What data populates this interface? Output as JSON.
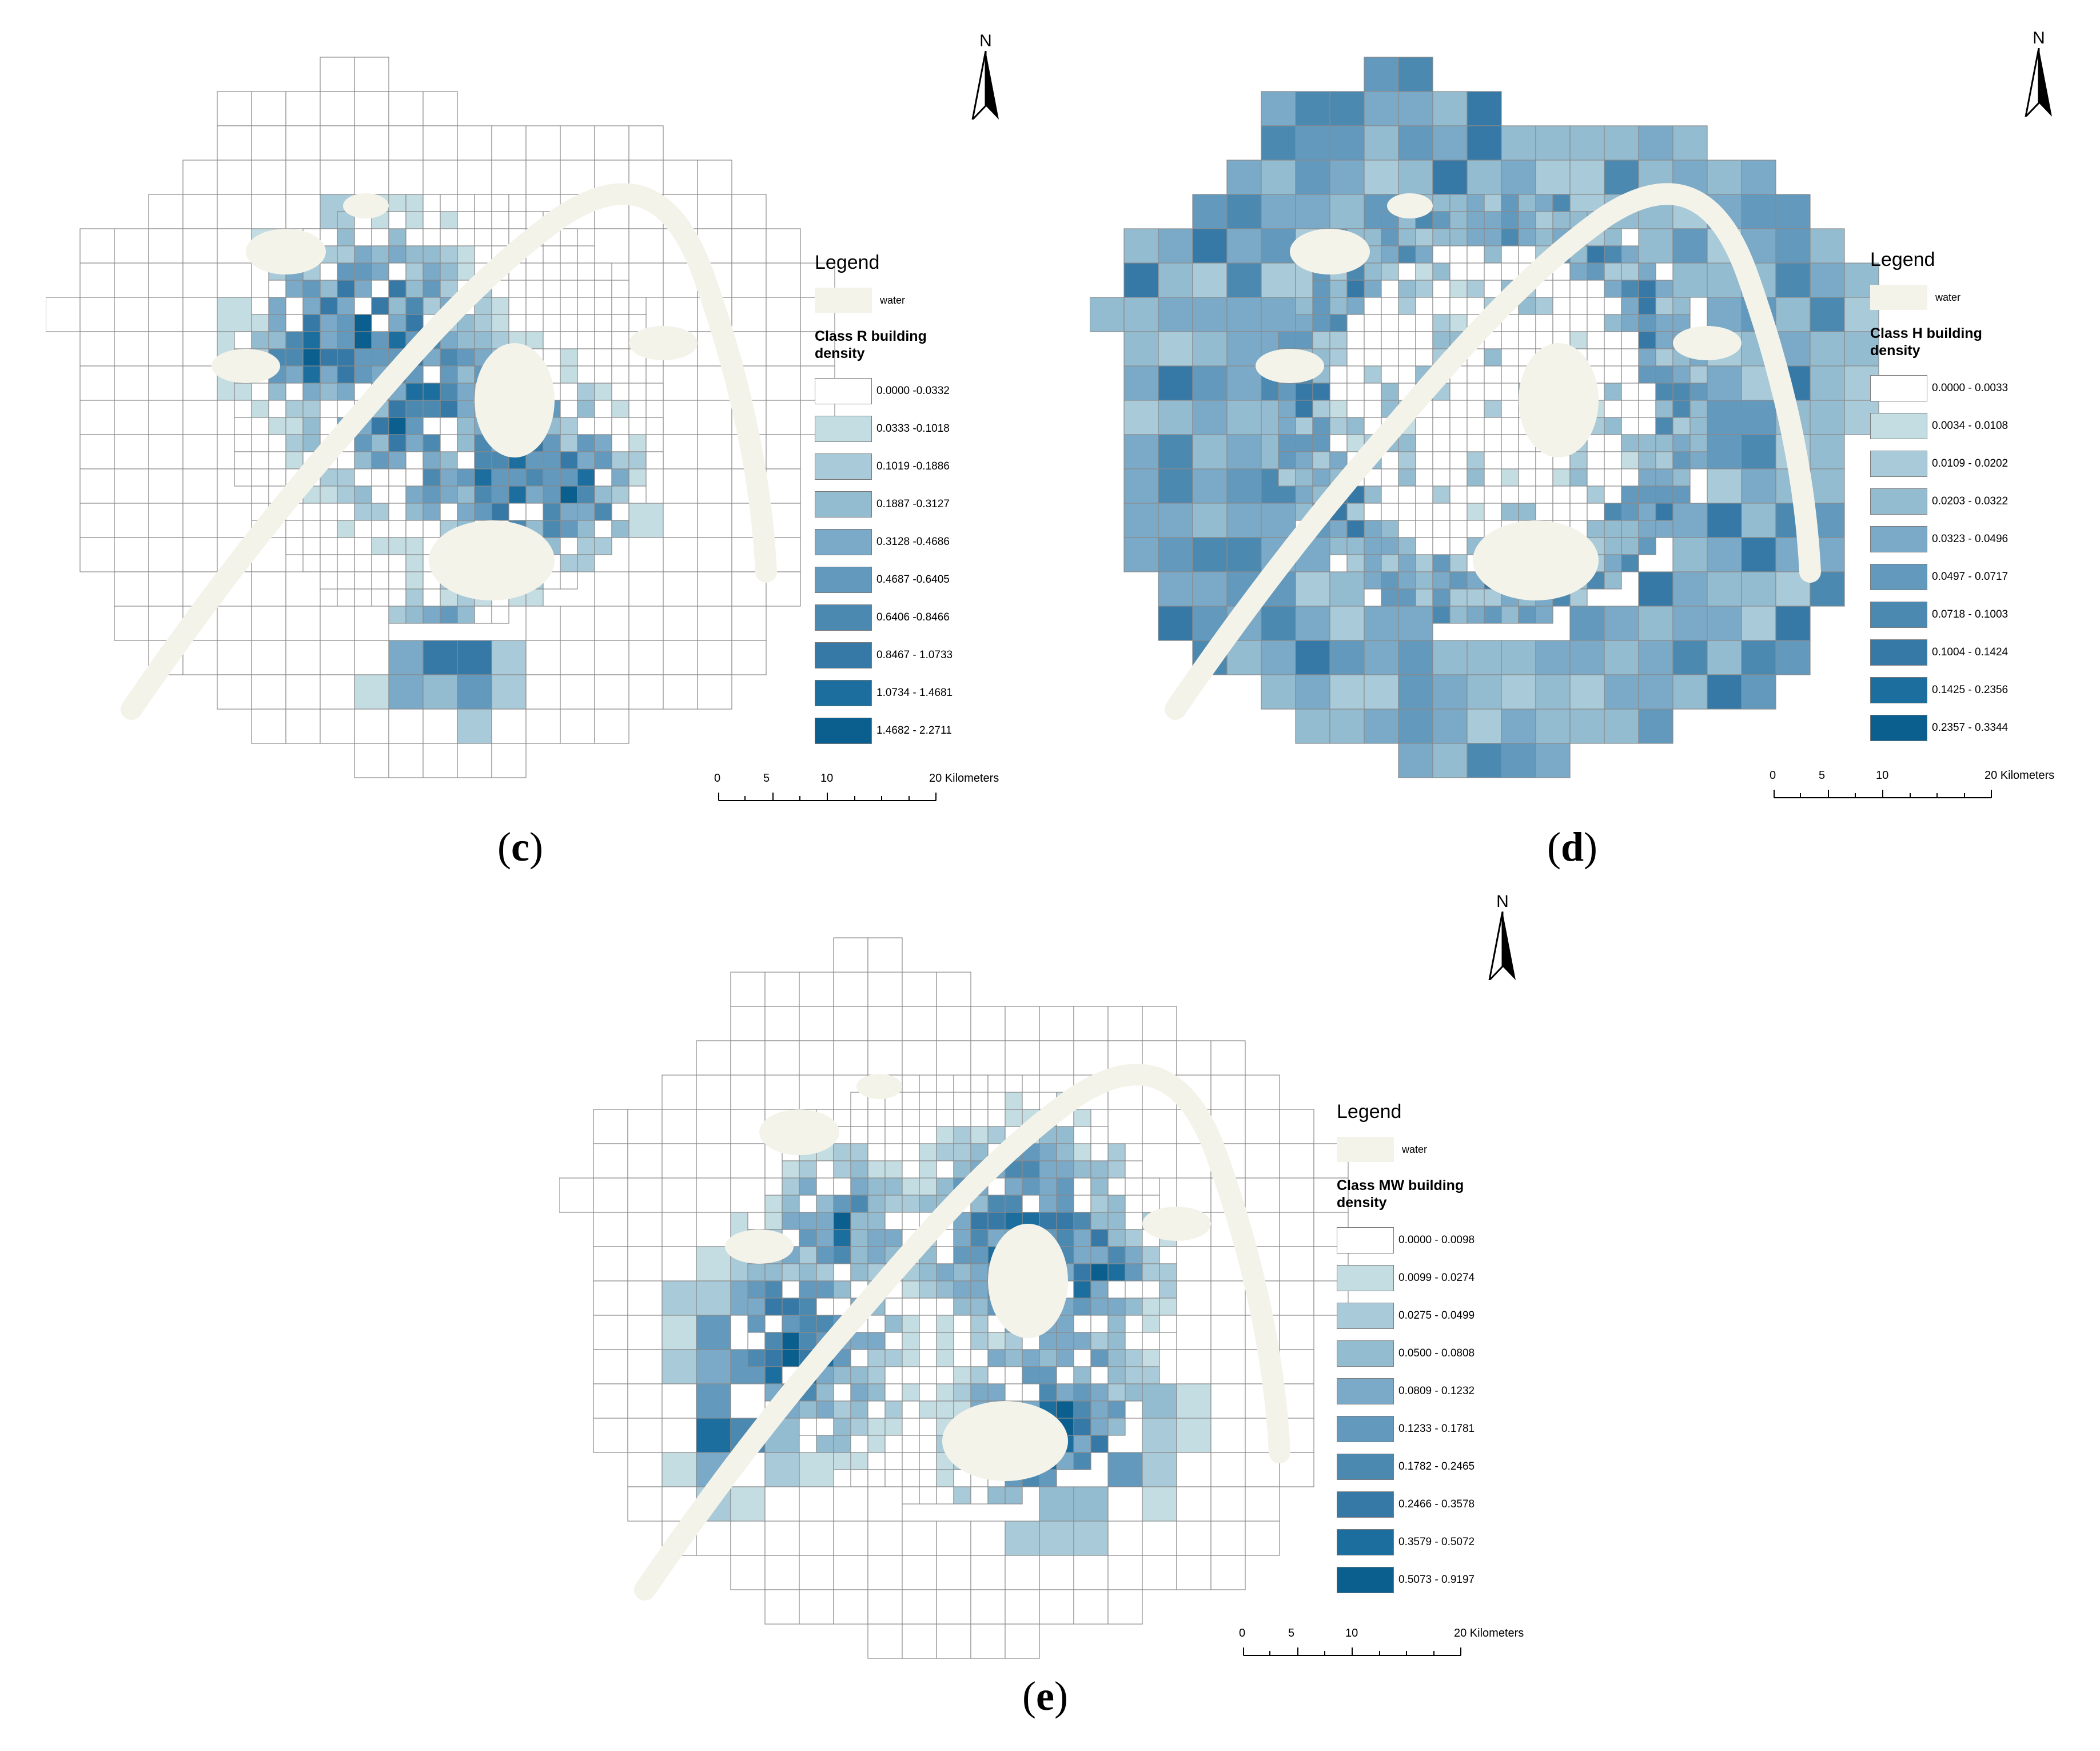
{
  "colors": {
    "water": "#f4f3ea",
    "border": "#8a8a8a",
    "ramp": [
      "#ffffff",
      "#c3dde3",
      "#a9cbd9",
      "#93bcd0",
      "#7aaac7",
      "#6299bc",
      "#4c89b1",
      "#3679a6",
      "#1b6e9e",
      "#0b5f8e"
    ]
  },
  "panels": [
    {
      "id": "c",
      "label_open": "(",
      "label_letter": "c",
      "label_close": ")",
      "north": "N",
      "legend_title": "Legend",
      "water_label": "water",
      "class_title": "Class R building density",
      "classes": [
        "0.0000 -0.0332",
        "0.0333 -0.1018",
        "0.1019 -0.1886",
        "0.1887 -0.3127",
        "0.3128 -0.4686",
        "0.4687 -0.6405",
        "0.6406 -0.8466",
        "0.8467 - 1.0733",
        "1.0734 - 1.4681",
        "1.4682 - 2.2711"
      ],
      "scale": {
        "ticks": [
          "0",
          "5",
          "10",
          "20 Kilometers"
        ]
      }
    },
    {
      "id": "d",
      "label_open": "(",
      "label_letter": "d",
      "label_close": ")",
      "north": "N",
      "legend_title": "Legend",
      "water_label": "water",
      "class_title": "Class H building density",
      "classes": [
        "0.0000 - 0.0033",
        "0.0034 - 0.0108",
        "0.0109 - 0.0202",
        "0.0203 - 0.0322",
        "0.0323 - 0.0496",
        "0.0497 - 0.0717",
        "0.0718 - 0.1003",
        "0.1004 - 0.1424",
        "0.1425 - 0.2356",
        "0.2357 - 0.3344"
      ],
      "scale": {
        "ticks": [
          "0",
          "5",
          "10",
          "20 Kilometers"
        ]
      }
    },
    {
      "id": "e",
      "label_open": "(",
      "label_letter": "e",
      "label_close": ")",
      "north": "N",
      "legend_title": "Legend",
      "water_label": "water",
      "class_title": "Class MW building density",
      "classes": [
        "0.0000 - 0.0098",
        "0.0099 - 0.0274",
        "0.0275 - 0.0499",
        "0.0500 - 0.0808",
        "0.0809 - 0.1232",
        "0.1233 - 0.1781",
        "0.1782 - 0.2465",
        "0.2466 - 0.3578",
        "0.3579 - 0.5072",
        "0.5073 - 0.9197"
      ],
      "scale": {
        "ticks": [
          "0",
          "5",
          "10",
          "20 Kilometers"
        ]
      }
    }
  ]
}
